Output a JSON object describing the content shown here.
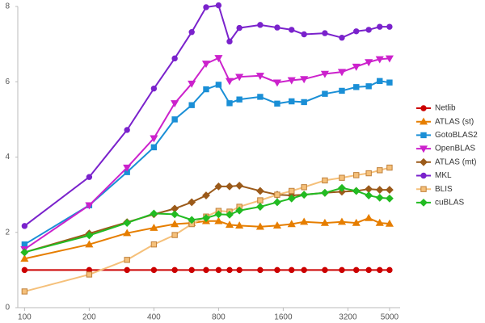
{
  "chart_data": {
    "type": "line",
    "xscale": "log",
    "x": [
      100,
      200,
      300,
      400,
      500,
      600,
      700,
      800,
      900,
      1000,
      1250,
      1500,
      1750,
      2000,
      2500,
      3000,
      3500,
      4000,
      4500,
      5000
    ],
    "xlim": [
      93,
      5600
    ],
    "xticks": [
      100,
      200,
      400,
      800,
      1600,
      3200,
      5000
    ],
    "ylim": [
      0,
      8
    ],
    "yticks": [
      0,
      2,
      4,
      6,
      8
    ],
    "grid": false,
    "legend": "right",
    "series": [
      {
        "name": "Netlib",
        "color": "#cc0000",
        "marker": "circle",
        "values": [
          1,
          1,
          1,
          1,
          1,
          1,
          1,
          1,
          1,
          1,
          1,
          1,
          1,
          1,
          1,
          1,
          1,
          1,
          1,
          1
        ]
      },
      {
        "name": "ATLAS (st)",
        "color": "#e67e00",
        "marker": "triangle-up",
        "values": [
          1.3,
          1.68,
          1.98,
          2.12,
          2.22,
          2.25,
          2.3,
          2.3,
          2.2,
          2.18,
          2.15,
          2.18,
          2.22,
          2.28,
          2.25,
          2.28,
          2.25,
          2.38,
          2.25,
          2.23
        ]
      },
      {
        "name": "GotoBLAS2",
        "color": "#1a8fd6",
        "marker": "square",
        "values": [
          1.68,
          2.72,
          3.6,
          4.26,
          5.0,
          5.38,
          5.8,
          5.92,
          5.43,
          5.53,
          5.6,
          5.42,
          5.48,
          5.46,
          5.68,
          5.76,
          5.86,
          5.88,
          6.02,
          5.98
        ]
      },
      {
        "name": "OpenBLAS",
        "color": "#cc22cc",
        "marker": "triangle-down",
        "values": [
          1.55,
          2.72,
          3.72,
          4.5,
          5.43,
          5.95,
          6.48,
          6.63,
          6.02,
          6.13,
          6.16,
          5.98,
          6.04,
          6.07,
          6.21,
          6.26,
          6.4,
          6.52,
          6.6,
          6.62
        ]
      },
      {
        "name": "ATLAS (mt)",
        "color": "#9b5a1a",
        "marker": "diamond",
        "values": [
          1.47,
          1.97,
          2.27,
          2.48,
          2.63,
          2.8,
          2.98,
          3.22,
          3.22,
          3.24,
          3.1,
          3.0,
          2.98,
          3.0,
          3.05,
          3.08,
          3.1,
          3.15,
          3.13,
          3.13
        ]
      },
      {
        "name": "MKL",
        "color": "#7a22cc",
        "marker": "circle",
        "values": [
          2.17,
          3.47,
          4.72,
          5.82,
          6.62,
          7.32,
          7.98,
          8.03,
          7.07,
          7.43,
          7.51,
          7.44,
          7.38,
          7.26,
          7.29,
          7.17,
          7.34,
          7.38,
          7.46,
          7.46
        ]
      },
      {
        "name": "BLIS",
        "color": "#f5c07a",
        "marker": "square-open",
        "values": [
          0.43,
          0.88,
          1.27,
          1.68,
          1.93,
          2.22,
          2.42,
          2.57,
          2.55,
          2.68,
          2.85,
          3.0,
          3.1,
          3.2,
          3.38,
          3.45,
          3.52,
          3.57,
          3.65,
          3.72
        ]
      },
      {
        "name": "cuBLAS",
        "color": "#22bb22",
        "marker": "diamond",
        "values": [
          1.47,
          1.92,
          2.25,
          2.5,
          2.48,
          2.33,
          2.38,
          2.48,
          2.47,
          2.58,
          2.68,
          2.8,
          2.9,
          3.0,
          3.05,
          3.18,
          3.1,
          2.98,
          2.92,
          2.9
        ]
      }
    ]
  }
}
